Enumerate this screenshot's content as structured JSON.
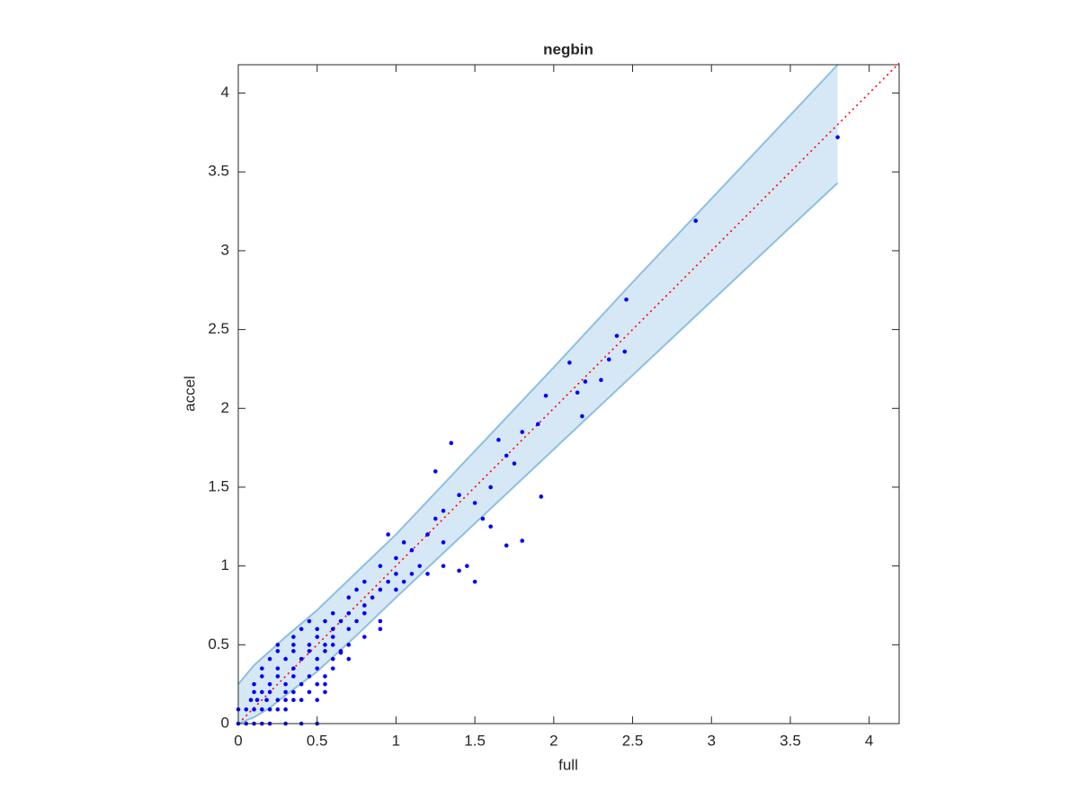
{
  "chart_data": {
    "type": "scatter",
    "title": "negbin",
    "xlabel": "full",
    "ylabel": "accel",
    "xlim": [
      0,
      4.19
    ],
    "ylim": [
      0,
      4.18
    ],
    "xticks": [
      0,
      0.5,
      1,
      1.5,
      2,
      2.5,
      3,
      3.5,
      4
    ],
    "yticks": [
      0,
      0.5,
      1,
      1.5,
      2,
      2.5,
      3,
      3.5,
      4
    ],
    "color": "#0000ff",
    "band": {
      "color": "#d6e8f5",
      "edge_color": "#8dbfdf",
      "x": [
        0,
        0.1,
        0.2,
        0.3,
        0.5,
        0.75,
        1,
        1.5,
        2,
        2.5,
        3,
        3.5,
        3.8
      ],
      "upper": [
        0.25,
        0.37,
        0.46,
        0.55,
        0.72,
        0.96,
        1.2,
        1.73,
        2.26,
        2.8,
        3.33,
        3.86,
        4.18
      ],
      "lower": [
        0,
        0.04,
        0.1,
        0.18,
        0.33,
        0.56,
        0.8,
        1.27,
        1.74,
        2.21,
        2.68,
        3.15,
        3.43
      ]
    },
    "reference_line": {
      "color": "#ff0000",
      "x": [
        0,
        4.19
      ],
      "y": [
        0,
        4.19
      ]
    },
    "x": [
      0,
      0.05,
      0.1,
      0.15,
      0.2,
      0.3,
      0.4,
      0.5,
      0,
      0.05,
      0.1,
      0.15,
      0.2,
      0.25,
      0.3,
      0.08,
      0.12,
      0.18,
      0.25,
      0.3,
      0.35,
      0.4,
      0.5,
      0.1,
      0.15,
      0.2,
      0.3,
      0.35,
      0.45,
      0.55,
      0.1,
      0.2,
      0.3,
      0.4,
      0.5,
      0.55,
      0.15,
      0.25,
      0.35,
      0.45,
      0.55,
      0.15,
      0.25,
      0.35,
      0.5,
      0.6,
      0.2,
      0.3,
      0.4,
      0.5,
      0.6,
      0.7,
      0.25,
      0.35,
      0.45,
      0.55,
      0.65,
      0.25,
      0.35,
      0.45,
      0.55,
      0.7,
      0.35,
      0.5,
      0.6,
      0.8,
      0.4,
      0.5,
      0.6,
      0.7,
      0.9,
      0.45,
      0.55,
      0.65,
      0.75,
      0.6,
      0.7,
      0.8,
      0.8,
      0.85,
      0.9,
      0.7,
      0.75,
      0.8,
      0.95,
      1,
      1.05,
      0.9,
      1,
      1.1,
      1.15,
      0.95,
      1.05,
      1.1,
      1.2,
      1.2,
      1.3,
      1.4,
      1.5,
      1.45,
      1.25,
      1.3,
      1.25,
      1.35,
      1.4,
      1.5,
      1.55,
      1.6,
      1.65,
      1.7,
      1.75,
      1.8,
      1.7,
      1.8,
      1.6,
      1.9,
      1.92,
      1.95,
      2.1,
      2.15,
      2.2,
      2.18,
      2.3,
      2.35,
      2.4,
      2.45,
      2.46,
      2.9,
      3.8,
      1.0,
      0.65,
      0.6,
      0.9,
      1.3
    ],
    "y": [
      0,
      0,
      0,
      0,
      0,
      0,
      0,
      0,
      0.09,
      0.09,
      0.09,
      0.09,
      0.09,
      0.09,
      0.09,
      0.15,
      0.15,
      0.15,
      0.15,
      0.15,
      0.15,
      0.15,
      0.15,
      0.2,
      0.2,
      0.2,
      0.2,
      0.2,
      0.2,
      0.2,
      0.25,
      0.25,
      0.25,
      0.25,
      0.25,
      0.25,
      0.3,
      0.3,
      0.3,
      0.3,
      0.3,
      0.35,
      0.35,
      0.35,
      0.35,
      0.35,
      0.41,
      0.41,
      0.41,
      0.41,
      0.41,
      0.41,
      0.46,
      0.46,
      0.46,
      0.46,
      0.46,
      0.5,
      0.5,
      0.5,
      0.5,
      0.5,
      0.55,
      0.55,
      0.55,
      0.55,
      0.6,
      0.6,
      0.6,
      0.6,
      0.6,
      0.65,
      0.65,
      0.65,
      0.65,
      0.7,
      0.7,
      0.7,
      0.75,
      0.8,
      0.85,
      0.8,
      0.85,
      0.9,
      0.9,
      0.95,
      0.9,
      1,
      1.05,
      0.95,
      1.0,
      1.2,
      1.15,
      1.1,
      1.2,
      0.95,
      1.0,
      0.97,
      0.9,
      1.0,
      1.3,
      1.35,
      1.6,
      1.78,
      1.45,
      1.4,
      1.3,
      1.5,
      1.8,
      1.7,
      1.65,
      1.85,
      1.13,
      1.16,
      1.25,
      1.9,
      1.44,
      2.08,
      2.29,
      2.1,
      2.17,
      1.95,
      2.18,
      2.31,
      2.46,
      2.36,
      2.69,
      3.19,
      3.72,
      0.85,
      0.45,
      0.5,
      0.65,
      1.15
    ]
  }
}
